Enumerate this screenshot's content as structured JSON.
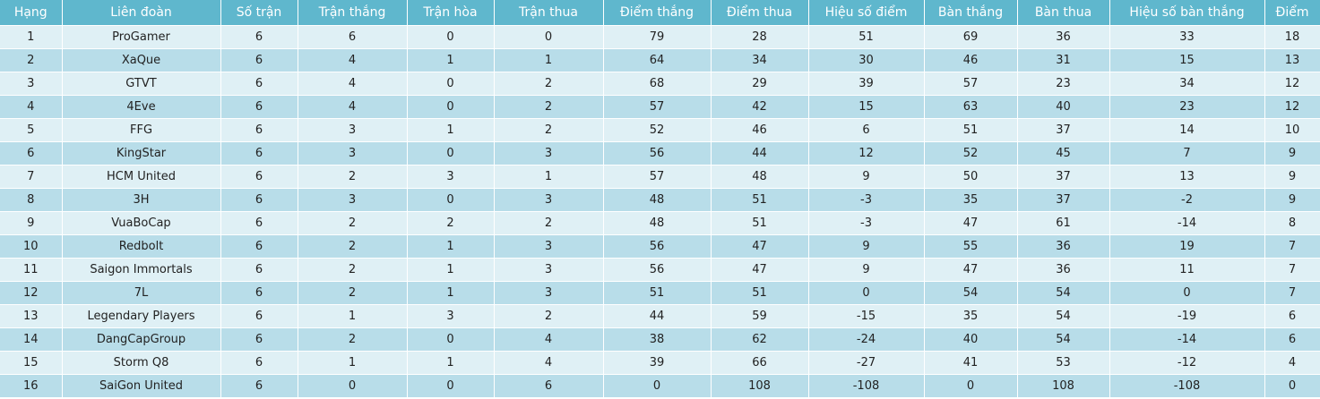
{
  "table": {
    "headers": [
      "Hạng",
      "Liên đoàn",
      "Số trận",
      "Trận thắng",
      "Trận hòa",
      "Trận thua",
      "Điểm thắng",
      "Điểm thua",
      "Hiệu số điểm",
      "Bàn thắng",
      "Bàn thua",
      "Hiệu số bàn thắng",
      "Điểm"
    ],
    "rows": [
      [
        "1",
        "ProGamer",
        "6",
        "6",
        "0",
        "0",
        "79",
        "28",
        "51",
        "69",
        "36",
        "33",
        "18"
      ],
      [
        "2",
        "XaQue",
        "6",
        "4",
        "1",
        "1",
        "64",
        "34",
        "30",
        "46",
        "31",
        "15",
        "13"
      ],
      [
        "3",
        "GTVT",
        "6",
        "4",
        "0",
        "2",
        "68",
        "29",
        "39",
        "57",
        "23",
        "34",
        "12"
      ],
      [
        "4",
        "4Eve",
        "6",
        "4",
        "0",
        "2",
        "57",
        "42",
        "15",
        "63",
        "40",
        "23",
        "12"
      ],
      [
        "5",
        "FFG",
        "6",
        "3",
        "1",
        "2",
        "52",
        "46",
        "6",
        "51",
        "37",
        "14",
        "10"
      ],
      [
        "6",
        "KingStar",
        "6",
        "3",
        "0",
        "3",
        "56",
        "44",
        "12",
        "52",
        "45",
        "7",
        "9"
      ],
      [
        "7",
        "HCM United",
        "6",
        "2",
        "3",
        "1",
        "57",
        "48",
        "9",
        "50",
        "37",
        "13",
        "9"
      ],
      [
        "8",
        "3H",
        "6",
        "3",
        "0",
        "3",
        "48",
        "51",
        "-3",
        "35",
        "37",
        "-2",
        "9"
      ],
      [
        "9",
        "VuaBoCap",
        "6",
        "2",
        "2",
        "2",
        "48",
        "51",
        "-3",
        "47",
        "61",
        "-14",
        "8"
      ],
      [
        "10",
        "Redbolt",
        "6",
        "2",
        "1",
        "3",
        "56",
        "47",
        "9",
        "55",
        "36",
        "19",
        "7"
      ],
      [
        "11",
        "Saigon Immortals",
        "6",
        "2",
        "1",
        "3",
        "56",
        "47",
        "9",
        "47",
        "36",
        "11",
        "7"
      ],
      [
        "12",
        "7L",
        "6",
        "2",
        "1",
        "3",
        "51",
        "51",
        "0",
        "54",
        "54",
        "0",
        "7"
      ],
      [
        "13",
        "Legendary Players",
        "6",
        "1",
        "3",
        "2",
        "44",
        "59",
        "-15",
        "35",
        "54",
        "-19",
        "6"
      ],
      [
        "14",
        "DangCapGroup",
        "6",
        "2",
        "0",
        "4",
        "38",
        "62",
        "-24",
        "40",
        "54",
        "-14",
        "6"
      ],
      [
        "15",
        "Storm Q8",
        "6",
        "1",
        "1",
        "4",
        "39",
        "66",
        "-27",
        "41",
        "53",
        "-12",
        "4"
      ],
      [
        "16",
        "SaiGon United",
        "6",
        "0",
        "0",
        "6",
        "0",
        "108",
        "-108",
        "0",
        "108",
        "-108",
        "0"
      ]
    ]
  },
  "colors": {
    "header_bg": "#5fb7cd",
    "row_light": "#dff0f5",
    "row_dark": "#b8dde9"
  }
}
